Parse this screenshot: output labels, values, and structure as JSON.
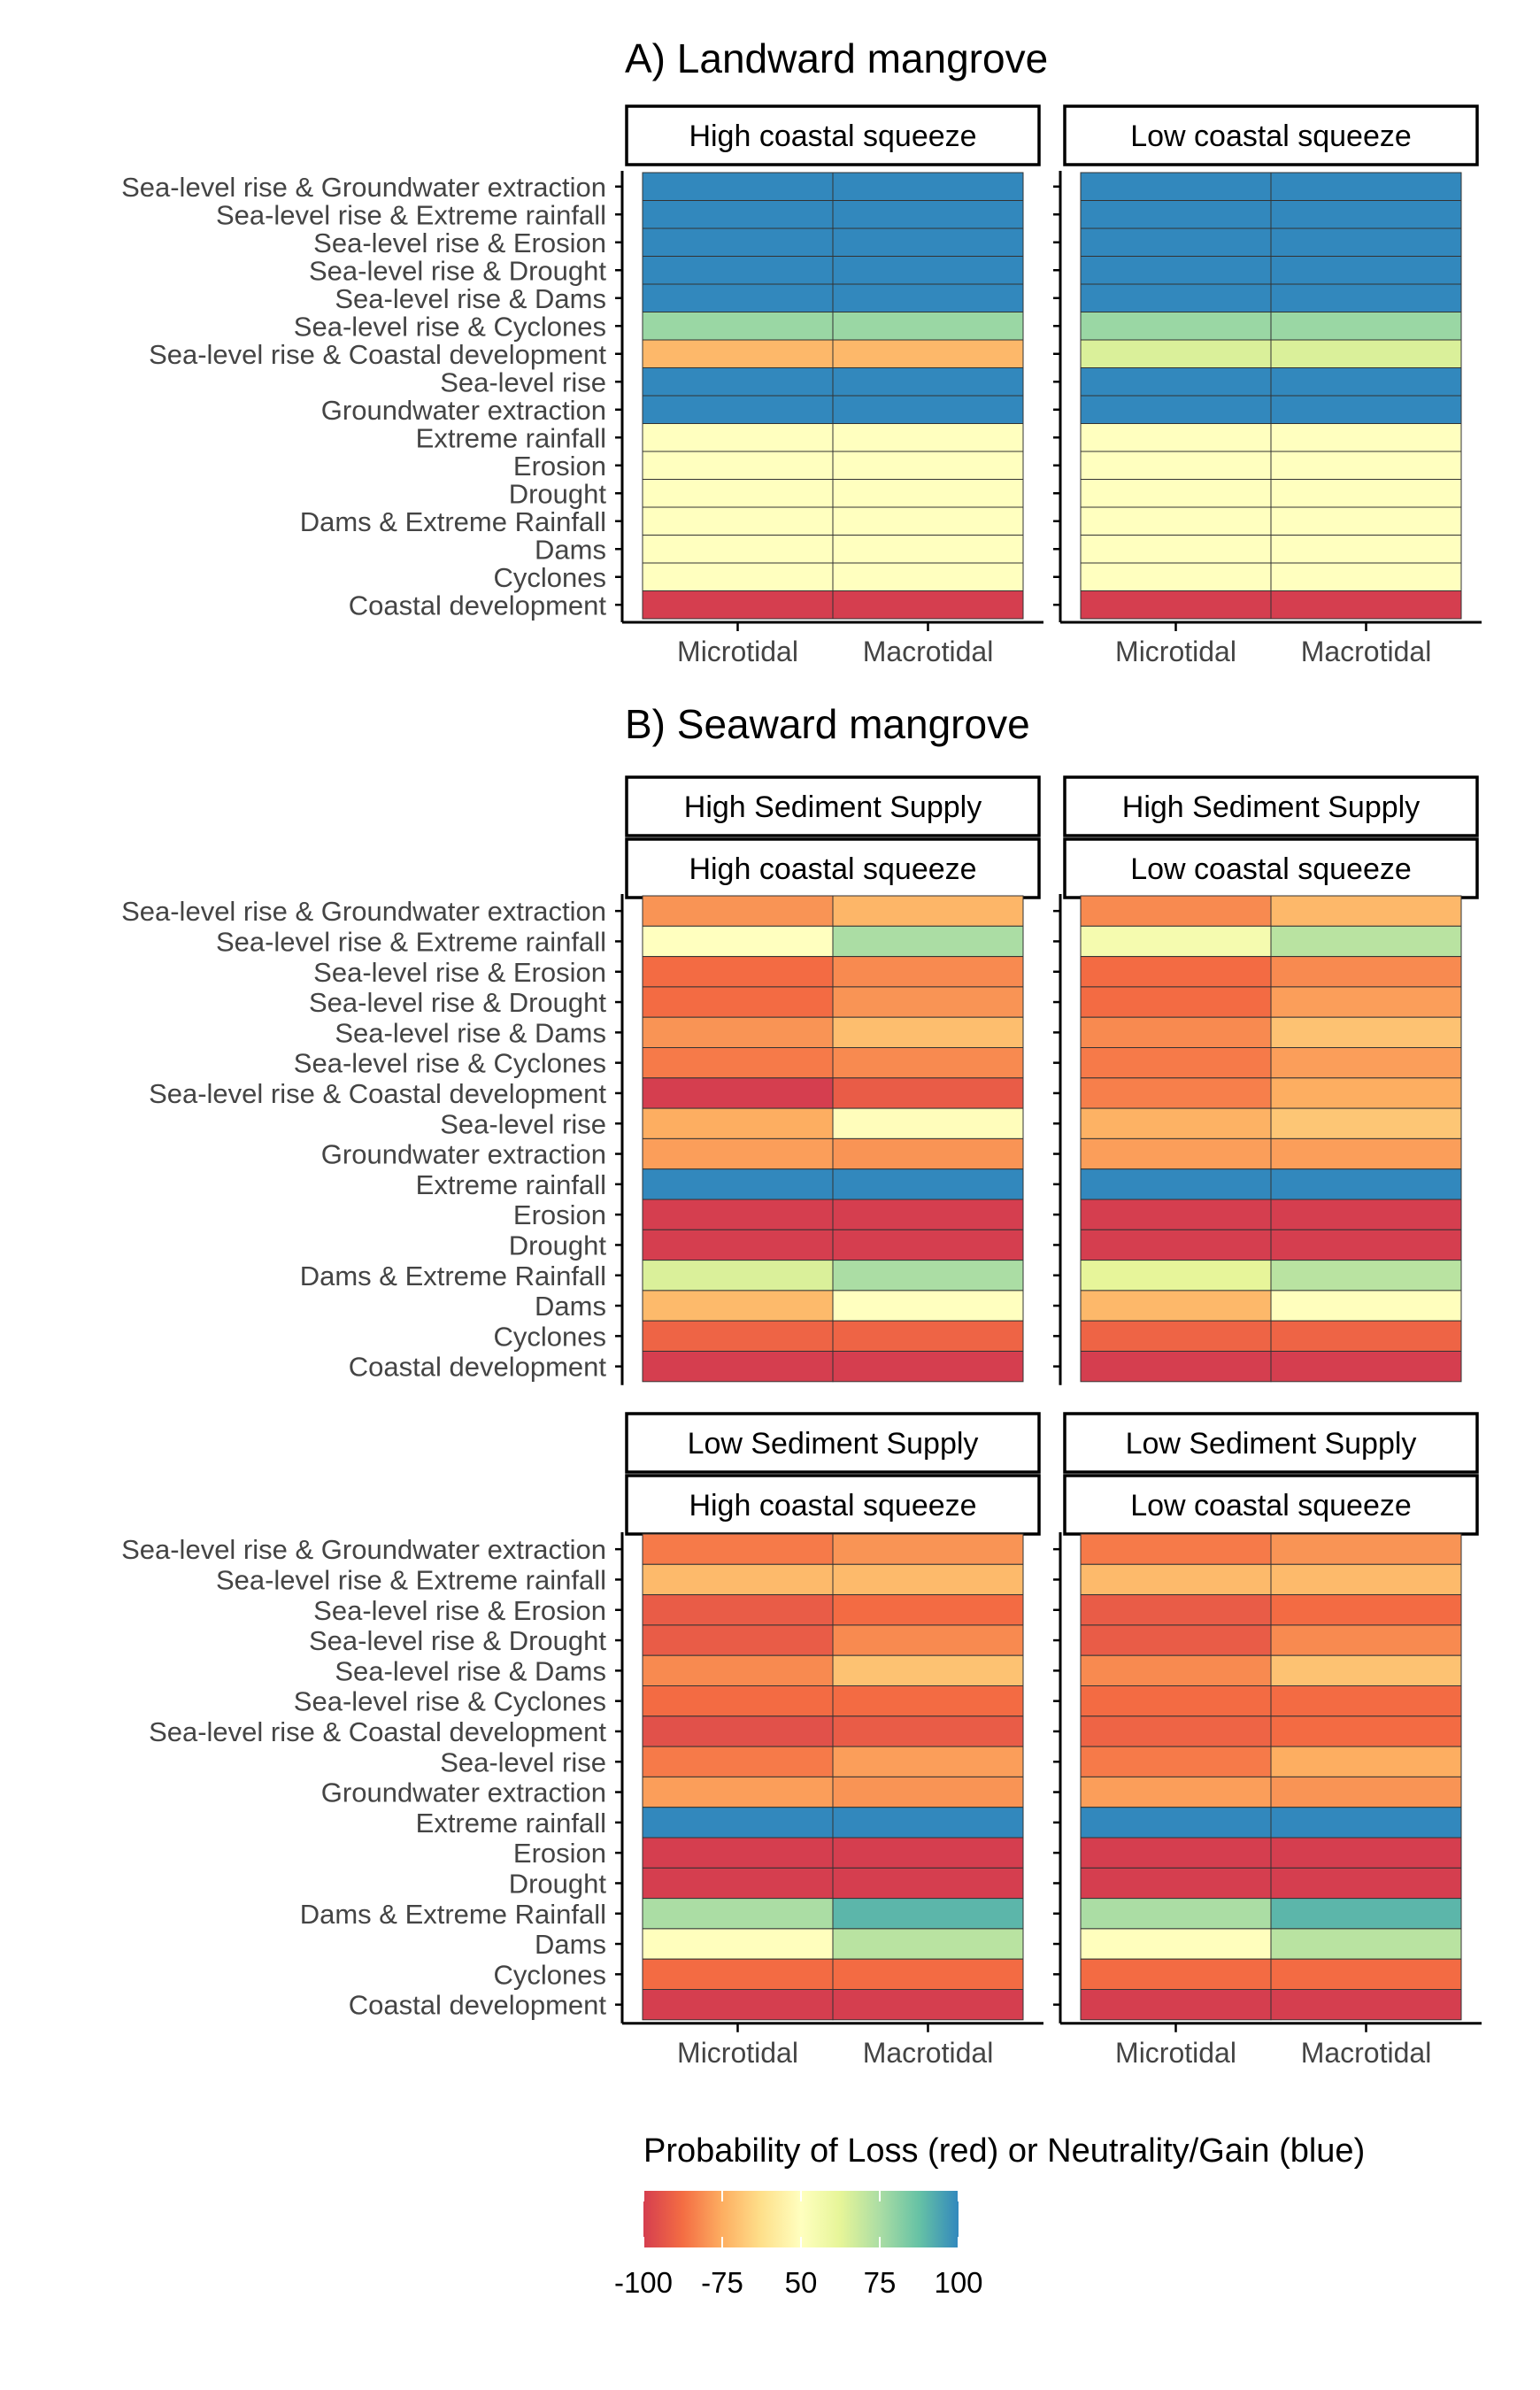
{
  "chart_data": [
    {
      "type": "heatmap",
      "title": "A) Landward mangrove",
      "rows": [
        "Sea-level rise & Groundwater extraction",
        "Sea-level rise & Extreme rainfall",
        "Sea-level rise & Erosion",
        "Sea-level rise & Drought",
        "Sea-level rise & Dams",
        "Sea-level rise & Cyclones",
        "Sea-level rise  & Coastal development",
        "Sea-level rise",
        "Groundwater extraction",
        "Extreme rainfall",
        "Erosion",
        "Drought",
        "Dams & Extreme Rainfall",
        "Dams",
        "Cyclones",
        "Coastal development"
      ],
      "columns": [
        "Microtidal",
        "Macrotidal"
      ],
      "panels": [
        {
          "strips": [
            "High coastal squeeze"
          ],
          "values": [
            [
              100,
              100
            ],
            [
              100,
              100
            ],
            [
              100,
              100
            ],
            [
              100,
              100
            ],
            [
              100,
              100
            ],
            [
              78,
              78
            ],
            [
              -62,
              -62
            ],
            [
              100,
              100
            ],
            [
              100,
              100
            ],
            [
              50,
              50
            ],
            [
              50,
              50
            ],
            [
              50,
              50
            ],
            [
              50,
              50
            ],
            [
              50,
              50
            ],
            [
              50,
              50
            ],
            [
              -100,
              -100
            ]
          ]
        },
        {
          "strips": [
            "Low coastal squeeze"
          ],
          "values": [
            [
              100,
              100
            ],
            [
              100,
              100
            ],
            [
              100,
              100
            ],
            [
              100,
              100
            ],
            [
              100,
              100
            ],
            [
              78,
              78
            ],
            [
              65,
              65
            ],
            [
              100,
              100
            ],
            [
              100,
              100
            ],
            [
              50,
              50
            ],
            [
              50,
              50
            ],
            [
              50,
              50
            ],
            [
              50,
              50
            ],
            [
              50,
              50
            ],
            [
              50,
              50
            ],
            [
              -100,
              -100
            ]
          ]
        }
      ]
    },
    {
      "type": "heatmap",
      "title": "B) Seaward mangrove",
      "rows": [
        "Sea-level rise & Groundwater extraction",
        "Sea-level rise & Extreme rainfall",
        "Sea-level rise & Erosion",
        "Sea-level rise & Drought",
        "Sea-level rise & Dams",
        "Sea-level rise & Cyclones",
        "Sea-level rise  & Coastal development",
        "Sea-level rise",
        "Groundwater extraction",
        "Extreme rainfall",
        "Erosion",
        "Drought",
        "Dams & Extreme Rainfall",
        "Dams",
        "Cyclones",
        "Coastal development"
      ],
      "columns": [
        "Microtidal",
        "Macrotidal"
      ],
      "panels": [
        {
          "strips": [
            "High Sediment Supply",
            "High coastal squeeze"
          ],
          "values": [
            [
              -80,
              -65
            ],
            [
              50,
              75
            ],
            [
              -88,
              -82
            ],
            [
              -88,
              -80
            ],
            [
              -80,
              -55
            ],
            [
              -85,
              -82
            ],
            [
              -100,
              -92
            ],
            [
              -75,
              45
            ],
            [
              -78,
              -80
            ],
            [
              100,
              100
            ],
            [
              -100,
              -100
            ],
            [
              -100,
              -100
            ],
            [
              65,
              75
            ],
            [
              -60,
              50
            ],
            [
              -90,
              -90
            ],
            [
              -100,
              -100
            ]
          ]
        },
        {
          "strips": [
            "High Sediment Supply",
            "Low coastal squeeze"
          ],
          "values": [
            [
              -82,
              -62
            ],
            [
              55,
              72
            ],
            [
              -88,
              -82
            ],
            [
              -88,
              -78
            ],
            [
              -82,
              -50
            ],
            [
              -85,
              -78
            ],
            [
              -84,
              -75
            ],
            [
              -70,
              -45
            ],
            [
              -78,
              -78
            ],
            [
              100,
              100
            ],
            [
              -100,
              -100
            ],
            [
              -100,
              -100
            ],
            [
              62,
              72
            ],
            [
              -62,
              48
            ],
            [
              -90,
              -90
            ],
            [
              -100,
              -100
            ]
          ]
        },
        {
          "strips": [
            "Low Sediment Supply",
            "High coastal squeeze"
          ],
          "values": [
            [
              -85,
              -80
            ],
            [
              -60,
              -60
            ],
            [
              -92,
              -88
            ],
            [
              -92,
              -82
            ],
            [
              -82,
              -50
            ],
            [
              -88,
              -88
            ],
            [
              -95,
              -92
            ],
            [
              -85,
              -78
            ],
            [
              -78,
              -80
            ],
            [
              100,
              100
            ],
            [
              -100,
              -100
            ],
            [
              -100,
              -100
            ],
            [
              75,
              90
            ],
            [
              48,
              72
            ],
            [
              -88,
              -88
            ],
            [
              -100,
              -100
            ]
          ]
        },
        {
          "strips": [
            "Low Sediment Supply",
            "Low coastal squeeze"
          ],
          "values": [
            [
              -85,
              -80
            ],
            [
              -60,
              -60
            ],
            [
              -92,
              -88
            ],
            [
              -92,
              -82
            ],
            [
              -82,
              -50
            ],
            [
              -88,
              -88
            ],
            [
              -90,
              -88
            ],
            [
              -85,
              -75
            ],
            [
              -78,
              -80
            ],
            [
              100,
              100
            ],
            [
              -100,
              -100
            ],
            [
              -100,
              -100
            ],
            [
              75,
              90
            ],
            [
              48,
              72
            ],
            [
              -88,
              -88
            ],
            [
              -100,
              -100
            ]
          ]
        }
      ]
    }
  ],
  "legend": {
    "title": "Probability of Loss (red) or Neutrality/Gain (blue)",
    "ticks": [
      "-100",
      "-75",
      "50",
      "75",
      "100"
    ],
    "colors": [
      "#d53e4f",
      "#f46d43",
      "#fdae61",
      "#fee08b",
      "#ffffbf",
      "#e6f598",
      "#abdda4",
      "#66c2a5",
      "#3288bd"
    ]
  }
}
